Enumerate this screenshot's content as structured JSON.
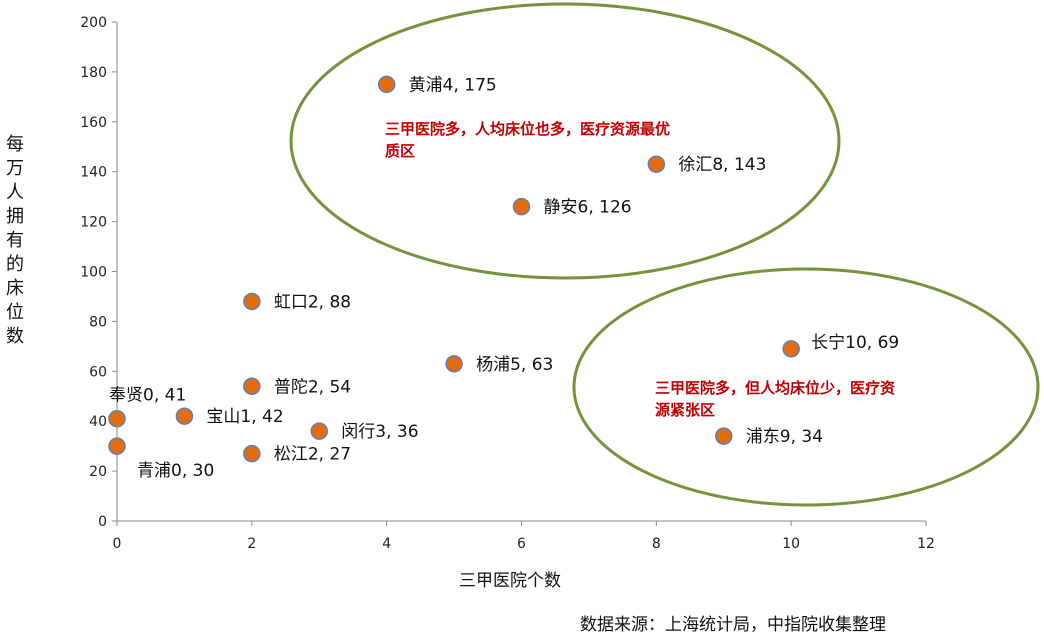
{
  "chart_data": {
    "type": "scatter",
    "xlabel": "三甲医院个数",
    "ylabel": "每万人拥有的床位数",
    "xlim": [
      0,
      12
    ],
    "ylim": [
      0,
      200
    ],
    "xticks": [
      0,
      2,
      4,
      6,
      8,
      10,
      12
    ],
    "yticks": [
      0,
      20,
      40,
      60,
      80,
      100,
      120,
      140,
      160,
      180,
      200
    ],
    "grid": false,
    "marker_color": "#e46c0a",
    "marker_edge_color": "#5b7fbf",
    "points": [
      {
        "name": "黄浦",
        "x": 4,
        "y": 175,
        "label": "黄浦4, 175"
      },
      {
        "name": "徐汇",
        "x": 8,
        "y": 143,
        "label": "徐汇8, 143"
      },
      {
        "name": "静安",
        "x": 6,
        "y": 126,
        "label": "静安6, 126"
      },
      {
        "name": "虹口",
        "x": 2,
        "y": 88,
        "label": "虹口2, 88"
      },
      {
        "name": "长宁",
        "x": 10,
        "y": 69,
        "label": "长宁10, 69"
      },
      {
        "name": "杨浦",
        "x": 5,
        "y": 63,
        "label": "杨浦5, 63"
      },
      {
        "name": "普陀",
        "x": 2,
        "y": 54,
        "label": "普陀2, 54"
      },
      {
        "name": "奉贤",
        "x": 0,
        "y": 41,
        "label": "奉贤0, 41"
      },
      {
        "name": "宝山",
        "x": 1,
        "y": 42,
        "label": "宝山1, 42"
      },
      {
        "name": "闵行",
        "x": 3,
        "y": 36,
        "label": "闵行3, 36"
      },
      {
        "name": "浦东",
        "x": 9,
        "y": 34,
        "label": "浦东9, 34"
      },
      {
        "name": "青浦",
        "x": 0,
        "y": 30,
        "label": "青浦0, 30"
      },
      {
        "name": "松江",
        "x": 2,
        "y": 27,
        "label": "松江2, 27"
      }
    ],
    "annotations": [
      {
        "lines": [
          "三甲医院多，人均床位也多，医疗资源最优",
          "质区"
        ],
        "color": "#c00000"
      },
      {
        "lines": [
          "三甲医院多，但人均床位少，医疗资",
          "源紧张区"
        ],
        "color": "#c00000"
      }
    ],
    "highlight_color": "#76923c",
    "source": "数据来源：上海统计局，中指院收集整理"
  }
}
